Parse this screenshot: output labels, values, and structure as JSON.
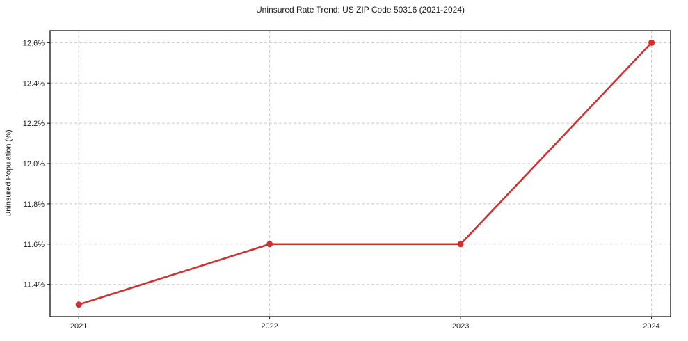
{
  "figure": {
    "title": "Uninsured Rate Trend: US ZIP Code 50316 (2021-2024)"
  },
  "chart_data": {
    "type": "line",
    "title": "Uninsured Rate Trend: US ZIP Code 50316 (2021-2024)",
    "xlabel": "",
    "ylabel": "Uninsured Population (%)",
    "x": [
      2021,
      2022,
      2023,
      2024
    ],
    "values": [
      11.3,
      11.6,
      11.6,
      12.6
    ],
    "value_unit": "%",
    "xticks": [
      "2021",
      "2022",
      "2023",
      "2024"
    ],
    "ytick_values": [
      11.4,
      11.6,
      11.8,
      12.0,
      12.2,
      12.4,
      12.6
    ],
    "yticks": [
      "11.4%",
      "11.6%",
      "11.8%",
      "12.0%",
      "12.2%",
      "12.4%",
      "12.6%"
    ],
    "xlim": [
      2020.85,
      2024.1
    ],
    "ylim": [
      11.24,
      12.66
    ],
    "grid": true,
    "grid_style": "dashed",
    "legend": "none",
    "line_color": "#d32f2f",
    "marker": "circle",
    "grid_color": "#cacaca",
    "axis_color": "#000000",
    "text_color": "#1a1a1a",
    "background": "#ffffff"
  }
}
